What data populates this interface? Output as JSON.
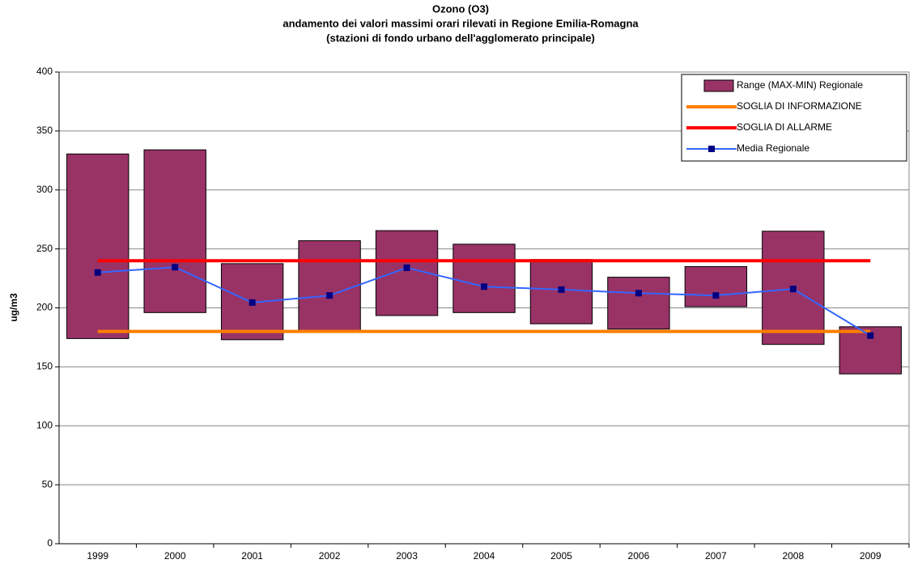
{
  "chart_data": {
    "type": "range-line",
    "title": "Ozono (O3)",
    "subtitle": [
      "andamento dei valori massimi orari rilevati in Regione Emilia-Romagna",
      "(stazioni di fondo urbano dell'agglomerato principale)"
    ],
    "y_label": "ug/m3",
    "categories": [
      "1999",
      "2000",
      "2001",
      "2002",
      "2003",
      "2004",
      "2005",
      "2006",
      "2007",
      "2008",
      "2009"
    ],
    "ylim": [
      0,
      400
    ],
    "yticks": [
      0,
      50,
      100,
      150,
      200,
      250,
      300,
      350,
      400
    ],
    "grid": true,
    "legend": "top-right",
    "series": [
      {
        "name": "Range (MAX-MIN) Regionale",
        "kind": "range",
        "color": "#993366",
        "low": [
          174,
          196,
          173,
          180,
          193.5,
          196,
          186.5,
          182,
          201,
          169,
          144
        ],
        "high": [
          330.5,
          334,
          237.5,
          257,
          265.5,
          254,
          241,
          226,
          235,
          265,
          184
        ]
      },
      {
        "name": "SOGLIA DI INFORMAZIONE",
        "kind": "line",
        "color": "#ff7f00",
        "values": [
          180,
          180,
          180,
          180,
          180,
          180,
          180,
          180,
          180,
          180,
          180
        ]
      },
      {
        "name": "SOGLIA DI ALLARME",
        "kind": "line",
        "color": "#ff0000",
        "values": [
          240,
          240,
          240,
          240,
          240,
          240,
          240,
          240,
          240,
          240,
          240
        ]
      },
      {
        "name": "Media Regionale",
        "kind": "marker-line",
        "color": "#3366ff",
        "marker_color": "#000080",
        "values": [
          230,
          234.5,
          204.5,
          210.5,
          234,
          218,
          215.5,
          212.5,
          210.5,
          216,
          176.5
        ]
      }
    ]
  }
}
